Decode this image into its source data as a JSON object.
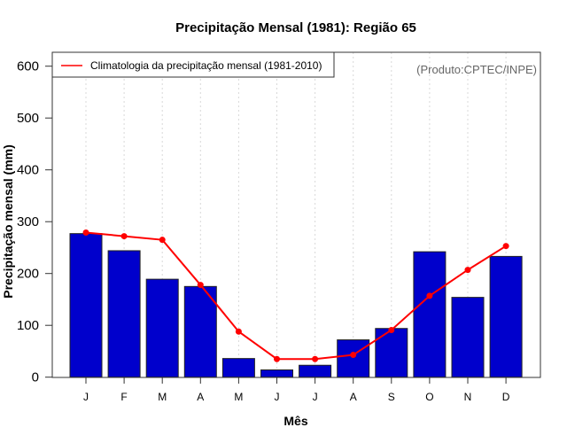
{
  "chart_data": {
    "type": "bar",
    "title": "Precipitação Mensal (1981): Região 65",
    "xlabel": "Mês",
    "ylabel": "Precipitação mensal (mm)",
    "ylim": [
      0,
      600
    ],
    "yticks": [
      0,
      100,
      200,
      300,
      400,
      500,
      600
    ],
    "categories": [
      "J",
      "F",
      "M",
      "A",
      "M",
      "J",
      "J",
      "A",
      "S",
      "O",
      "N",
      "D"
    ],
    "grid": "vertical dotted at month centers",
    "legend_position": "top-left",
    "credit": "(Produto:CPTEC/INPE)",
    "series": [
      {
        "name": "Precipitação mensal (1981)",
        "kind": "bar",
        "color": "#0000CC",
        "values": [
          277,
          244,
          189,
          175,
          36,
          14,
          23,
          72,
          94,
          242,
          154,
          233
        ]
      },
      {
        "name": "Climatologia da precipitação mensal (1981-2010)",
        "kind": "line",
        "color": "#FF0000",
        "values": [
          279,
          272,
          265,
          178,
          88,
          35,
          35,
          43,
          91,
          157,
          207,
          253
        ]
      }
    ]
  }
}
